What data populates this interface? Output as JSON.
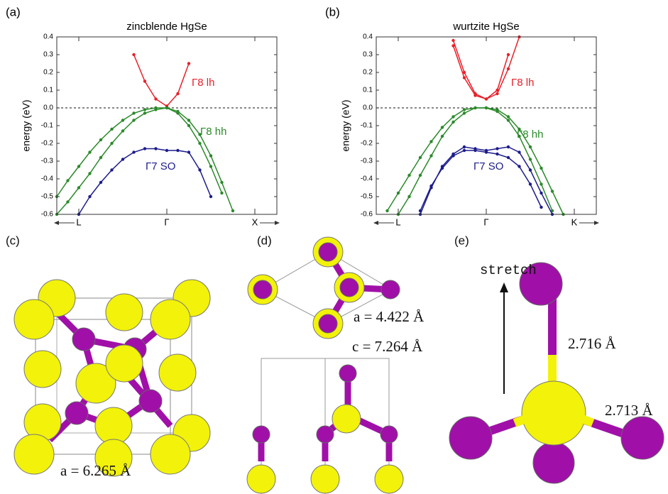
{
  "chart_data": [
    {
      "type": "line",
      "panel": "(a)",
      "title": "zincblende HgSe",
      "y_label": "energy (eV)",
      "categories": [
        null,
        null,
        "L",
        null,
        null,
        null,
        null,
        null,
        null,
        null,
        "Γ",
        null,
        null,
        null,
        null,
        null,
        null,
        null,
        "X",
        null,
        null
      ],
      "ylim": [
        -0.6,
        0.4
      ],
      "yticks": [
        0.4,
        0.3,
        0.2,
        0.1,
        {
          "value": 0,
          "label": "0.0"
        },
        -0.1,
        -0.2,
        -0.3,
        -0.4,
        -0.5,
        -0.6
      ],
      "hline": 0,
      "series": [
        {
          "name": "Γ8 lh",
          "color": "#e8202a",
          "values": [
            null,
            null,
            null,
            null,
            null,
            null,
            null,
            0.3,
            0.15,
            0.05,
            0.01,
            0.08,
            0.25,
            null,
            null,
            null,
            null,
            null,
            null,
            null,
            null
          ]
        },
        {
          "name": "Γ8 hh",
          "color": "#2a8a2a",
          "values": [
            -0.5,
            -0.41,
            -0.33,
            -0.25,
            -0.18,
            -0.12,
            -0.07,
            -0.03,
            -0.01,
            0,
            0,
            -0.02,
            -0.07,
            -0.15,
            -0.27,
            -0.42,
            -0.58,
            null,
            null,
            null,
            null
          ]
        },
        {
          "color": "#2a8a2a",
          "values": [
            -0.6,
            -0.53,
            -0.45,
            -0.37,
            -0.28,
            -0.2,
            -0.13,
            -0.07,
            -0.03,
            -0.01,
            0,
            -0.03,
            -0.1,
            -0.2,
            -0.33,
            -0.48,
            null,
            null,
            null,
            null,
            null
          ]
        },
        {
          "name": "Γ7 SO",
          "color": "#1c1c8c",
          "values": [
            null,
            null,
            -0.6,
            -0.5,
            -0.42,
            -0.35,
            -0.29,
            -0.25,
            -0.23,
            -0.23,
            -0.24,
            -0.24,
            -0.25,
            -0.35,
            -0.5,
            null,
            null,
            null,
            null,
            null,
            null
          ]
        }
      ]
    },
    {
      "type": "line",
      "panel": "(b)",
      "title": "wurtzite HgSe",
      "y_label": "energy (eV)",
      "categories": [
        null,
        null,
        "L",
        null,
        null,
        null,
        null,
        null,
        null,
        null,
        "Γ",
        null,
        null,
        null,
        null,
        null,
        null,
        null,
        "K",
        null,
        null
      ],
      "ylim": [
        -0.6,
        0.4
      ],
      "yticks": [
        0.4,
        0.3,
        0.2,
        0.1,
        {
          "value": 0,
          "label": "0.0"
        },
        -0.1,
        -0.2,
        -0.3,
        -0.4,
        -0.5,
        -0.6
      ],
      "hline": 0,
      "series": [
        {
          "name": "Γ8 lh",
          "color": "#e8202a",
          "values": [
            null,
            null,
            null,
            null,
            null,
            null,
            null,
            0.38,
            0.2,
            0.08,
            0.05,
            0.1,
            0.3,
            null,
            null,
            null,
            null,
            null,
            null,
            null,
            null
          ]
        },
        {
          "color": "#e8202a",
          "values": [
            null,
            null,
            null,
            null,
            null,
            null,
            null,
            0.35,
            0.17,
            0.07,
            0.05,
            0.08,
            0.22,
            0.4,
            null,
            null,
            null,
            null,
            null,
            null,
            null
          ]
        },
        {
          "name": "Γ8 hh",
          "color": "#2a8a2a",
          "values": [
            null,
            -0.58,
            -0.48,
            -0.38,
            -0.28,
            -0.19,
            -0.11,
            -0.05,
            -0.01,
            0,
            0,
            -0.01,
            -0.05,
            -0.12,
            -0.22,
            -0.34,
            -0.47,
            -0.6,
            null,
            null,
            null
          ]
        },
        {
          "color": "#2a8a2a",
          "values": [
            null,
            null,
            -0.6,
            -0.5,
            -0.38,
            -0.27,
            -0.16,
            -0.08,
            -0.03,
            0,
            0,
            -0.02,
            -0.07,
            -0.16,
            -0.29,
            -0.43,
            -0.58,
            null,
            null,
            null,
            null
          ]
        },
        {
          "name": "Γ7 SO",
          "color": "#1c1c8c",
          "values": [
            null,
            null,
            null,
            null,
            -0.6,
            -0.45,
            -0.33,
            -0.26,
            -0.22,
            -0.23,
            -0.24,
            -0.23,
            -0.22,
            -0.25,
            -0.35,
            -0.48,
            -0.6,
            null,
            null,
            null,
            null
          ]
        },
        {
          "color": "#1c1c8c",
          "values": [
            null,
            null,
            null,
            null,
            -0.58,
            -0.44,
            -0.34,
            -0.27,
            -0.24,
            -0.24,
            -0.25,
            -0.26,
            -0.28,
            -0.33,
            -0.43,
            -0.56,
            null,
            null,
            null,
            null,
            null
          ]
        }
      ]
    }
  ],
  "structures": {
    "c": {
      "panel": "(c)",
      "label": "a = 6.265 Å"
    },
    "d": {
      "panel": "(d)",
      "label_a": "a = 4.422 Å",
      "label_c": "c = 7.264 Å"
    },
    "e": {
      "panel": "(e)",
      "arrow_label": "stretch",
      "bond_top": "2.716 Å",
      "bond_side": "2.713 Å"
    }
  }
}
